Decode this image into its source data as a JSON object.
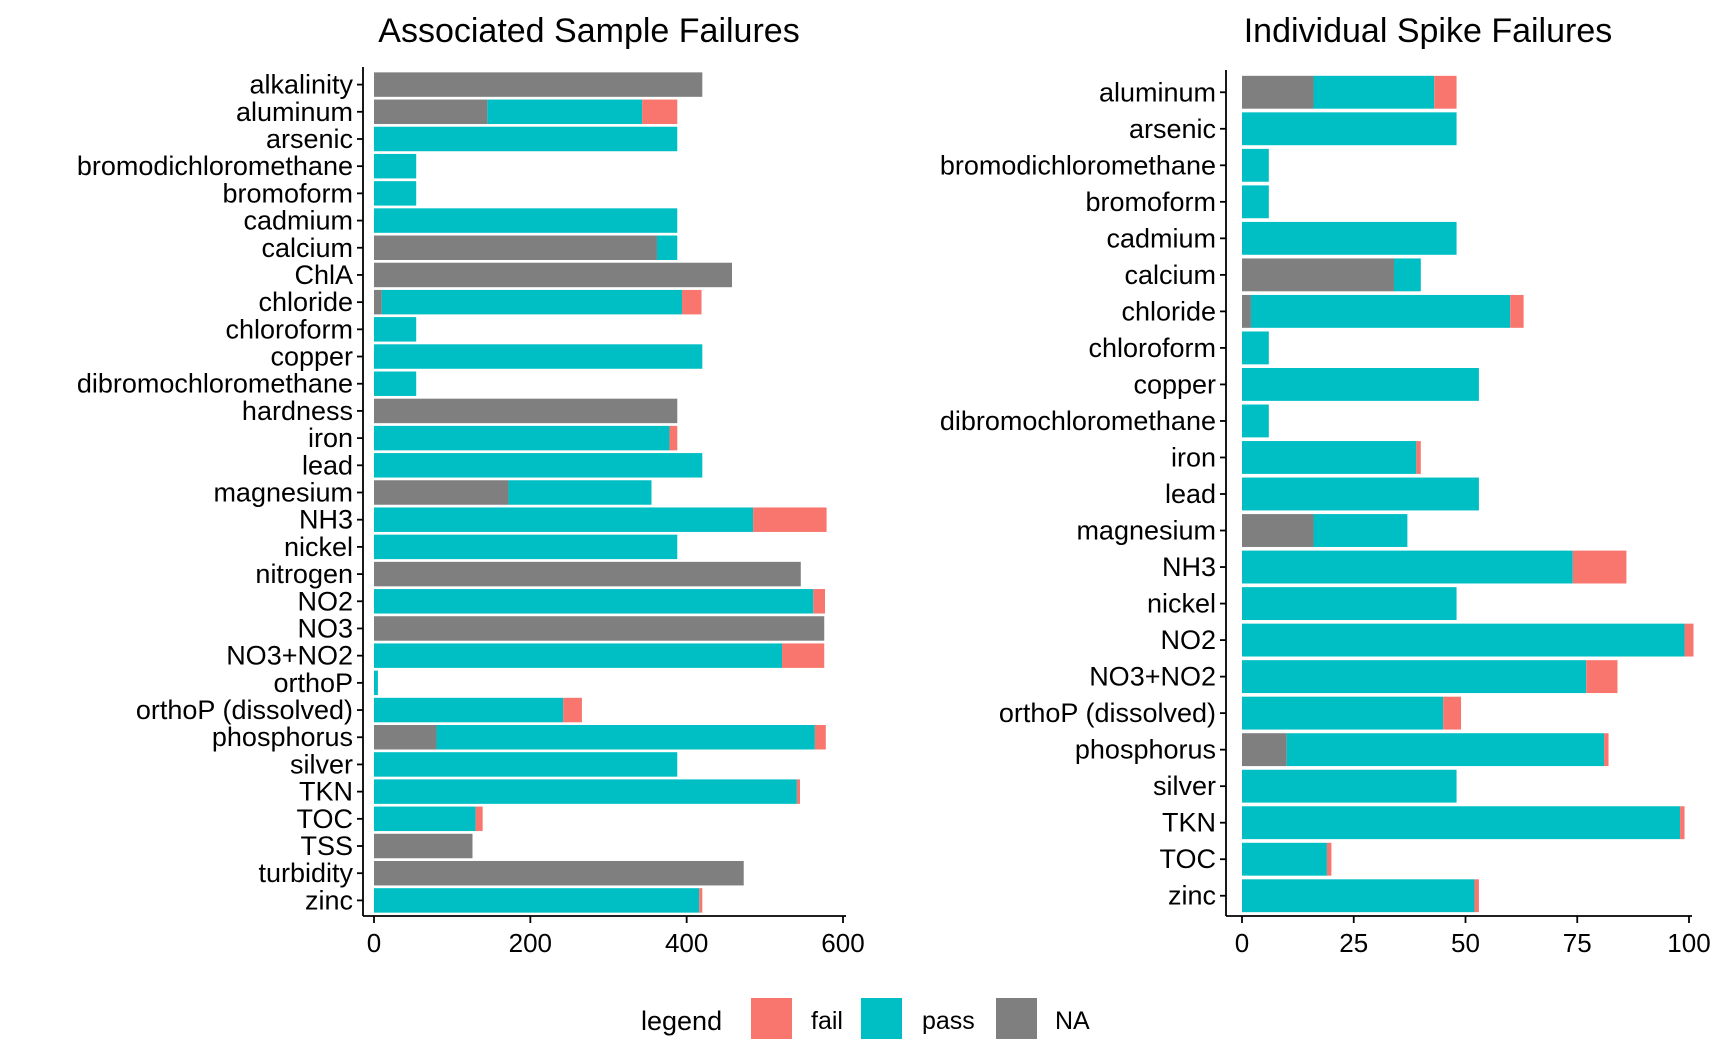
{
  "colors": {
    "fail": "#F8766D",
    "pass": "#00BFC4",
    "NA": "#7F7F7F"
  },
  "legend": {
    "title": "legend",
    "items": [
      {
        "key": "fail",
        "label": "fail"
      },
      {
        "key": "pass",
        "label": "pass"
      },
      {
        "key": "NA",
        "label": "NA"
      }
    ]
  },
  "chart_data": [
    {
      "type": "bar",
      "orientation": "horizontal",
      "stacked": true,
      "title": "Associated Sample Failures",
      "xlim": [
        0,
        600
      ],
      "ticks": [
        0,
        200,
        400,
        600
      ],
      "tick_labels": [
        "0",
        "200",
        "400",
        "600"
      ],
      "categories": [
        "alkalinity",
        "aluminum",
        "arsenic",
        "bromodichloromethane",
        "bromoform",
        "cadmium",
        "calcium",
        "ChlA",
        "chloride",
        "chloroform",
        "copper",
        "dibromochloromethane",
        "hardness",
        "iron",
        "lead",
        "magnesium",
        "NH3",
        "nickel",
        "nitrogen",
        "NO2",
        "NO3",
        "NO3+NO2",
        "orthoP",
        "orthoP (dissolved)",
        "phosphorus",
        "silver",
        "TKN",
        "TOC",
        "TSS",
        "turbidity",
        "zinc"
      ],
      "series": [
        {
          "name": "NA",
          "values": [
            420,
            145,
            0,
            0,
            0,
            0,
            362,
            458,
            10,
            0,
            0,
            0,
            388,
            0,
            0,
            172,
            0,
            0,
            546,
            0,
            576,
            0,
            0,
            0,
            80,
            0,
            0,
            0,
            126,
            473,
            0
          ]
        },
        {
          "name": "pass",
          "values": [
            0,
            198,
            388,
            54,
            54,
            388,
            26,
            0,
            384,
            54,
            420,
            54,
            0,
            378,
            420,
            183,
            485,
            388,
            0,
            562,
            0,
            522,
            5,
            242,
            484,
            388,
            541,
            130,
            0,
            0,
            416
          ]
        },
        {
          "name": "fail",
          "values": [
            0,
            45,
            0,
            0,
            0,
            0,
            0,
            0,
            25,
            0,
            0,
            0,
            0,
            10,
            0,
            0,
            94,
            0,
            0,
            15,
            0,
            54,
            0,
            24,
            14,
            0,
            4,
            9,
            0,
            0,
            4
          ]
        }
      ]
    },
    {
      "type": "bar",
      "orientation": "horizontal",
      "stacked": true,
      "title": "Individual Spike Failures",
      "xlim": [
        0,
        100
      ],
      "ticks": [
        0,
        25,
        50,
        75,
        100
      ],
      "tick_labels": [
        "0",
        "25",
        "50",
        "75",
        "100"
      ],
      "categories": [
        "aluminum",
        "arsenic",
        "bromodichloromethane",
        "bromoform",
        "cadmium",
        "calcium",
        "chloride",
        "chloroform",
        "copper",
        "dibromochloromethane",
        "iron",
        "lead",
        "magnesium",
        "NH3",
        "nickel",
        "NO2",
        "NO3+NO2",
        "orthoP (dissolved)",
        "phosphorus",
        "silver",
        "TKN",
        "TOC",
        "zinc"
      ],
      "series": [
        {
          "name": "NA",
          "values": [
            16,
            0,
            0,
            0,
            0,
            34,
            2,
            0,
            0,
            0,
            0,
            0,
            16,
            0,
            0,
            0,
            0,
            0,
            10,
            0,
            0,
            0,
            0
          ]
        },
        {
          "name": "pass",
          "values": [
            27,
            48,
            6,
            6,
            48,
            6,
            58,
            6,
            53,
            6,
            39,
            53,
            21,
            74,
            48,
            99,
            77,
            45,
            71,
            48,
            98,
            19,
            52
          ]
        },
        {
          "name": "fail",
          "values": [
            5,
            0,
            0,
            0,
            0,
            0,
            3,
            0,
            0,
            0,
            1,
            0,
            0,
            12,
            0,
            2,
            7,
            4,
            1,
            0,
            1,
            1,
            1
          ]
        }
      ]
    }
  ]
}
